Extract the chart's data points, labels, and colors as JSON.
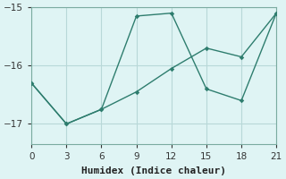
{
  "xlabel": "Humidex (Indice chaleur)",
  "bg_color": "#dff4f4",
  "line_color": "#2e7d6e",
  "grid_color": "#b8d8d8",
  "series1_x": [
    0,
    3,
    6,
    9,
    12,
    15,
    18,
    21
  ],
  "series1_y": [
    -16.3,
    -17.0,
    -16.75,
    -15.15,
    -15.1,
    -16.4,
    -16.6,
    -15.1
  ],
  "series2_x": [
    0,
    3,
    6,
    9,
    12,
    15,
    18,
    21
  ],
  "series2_y": [
    -16.3,
    -17.0,
    -16.75,
    -16.45,
    -16.05,
    -15.7,
    -15.85,
    -15.1
  ],
  "xlim": [
    0,
    21
  ],
  "ylim": [
    -17.35,
    -15.05
  ],
  "yticks": [
    -17,
    -16
  ],
  "xticks": [
    0,
    3,
    6,
    9,
    12,
    15,
    18,
    21
  ],
  "tick_fontsize": 7.5,
  "label_fontsize": 8
}
